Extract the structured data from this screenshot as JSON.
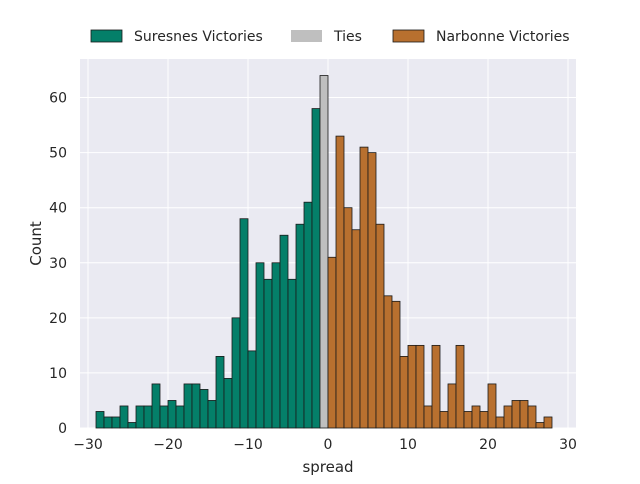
{
  "chart_data": {
    "type": "bar",
    "title": "",
    "xlabel": "spread",
    "ylabel": "Count",
    "xlim": [
      -31,
      31
    ],
    "ylim": [
      0,
      67
    ],
    "xticks": [
      -30,
      -20,
      -10,
      0,
      10,
      20,
      30
    ],
    "yticks": [
      0,
      10,
      20,
      30,
      40,
      50,
      60
    ],
    "xtick_labels": [
      "−30",
      "−20",
      "−10",
      "0",
      "10",
      "20",
      "30"
    ],
    "ytick_labels": [
      "0",
      "10",
      "20",
      "30",
      "40",
      "50",
      "60"
    ],
    "grid": true,
    "legend_position": "top-center",
    "bin_width": 1,
    "colors": {
      "background": "#EAEAF2",
      "grid": "#FFFFFF",
      "edge": "#1a1a1a",
      "Suresnes Victories": "#047F69",
      "Ties": "#BFBFBF",
      "Narbonne Victories": "#B8702F"
    },
    "series": [
      {
        "name": "Suresnes Victories",
        "bin_left": [
          -29,
          -28,
          -27,
          -26,
          -25,
          -24,
          -23,
          -22,
          -21,
          -20,
          -19,
          -18,
          -17,
          -16,
          -15,
          -14,
          -13,
          -12,
          -11,
          -10,
          -9,
          -8,
          -7,
          -6,
          -5,
          -4,
          -3,
          -2,
          -1
        ],
        "values": [
          3,
          2,
          2,
          4,
          1,
          4,
          4,
          8,
          4,
          5,
          4,
          8,
          8,
          7,
          5,
          13,
          9,
          20,
          38,
          14,
          30,
          27,
          30,
          35,
          27,
          37,
          41,
          58,
          0
        ]
      },
      {
        "name": "Ties",
        "bin_left": [
          -1
        ],
        "values": [
          64
        ]
      },
      {
        "name": "Narbonne Victories",
        "bin_left": [
          0,
          1,
          2,
          3,
          4,
          5,
          6,
          7,
          8,
          9,
          10,
          11,
          12,
          13,
          14,
          15,
          16,
          17,
          18,
          19,
          20,
          21,
          22,
          23,
          24,
          25,
          26,
          27
        ],
        "values": [
          31,
          53,
          40,
          36,
          51,
          50,
          37,
          24,
          23,
          13,
          15,
          15,
          4,
          15,
          3,
          8,
          15,
          3,
          4,
          3,
          8,
          2,
          4,
          5,
          5,
          4,
          1,
          2
        ]
      }
    ]
  }
}
